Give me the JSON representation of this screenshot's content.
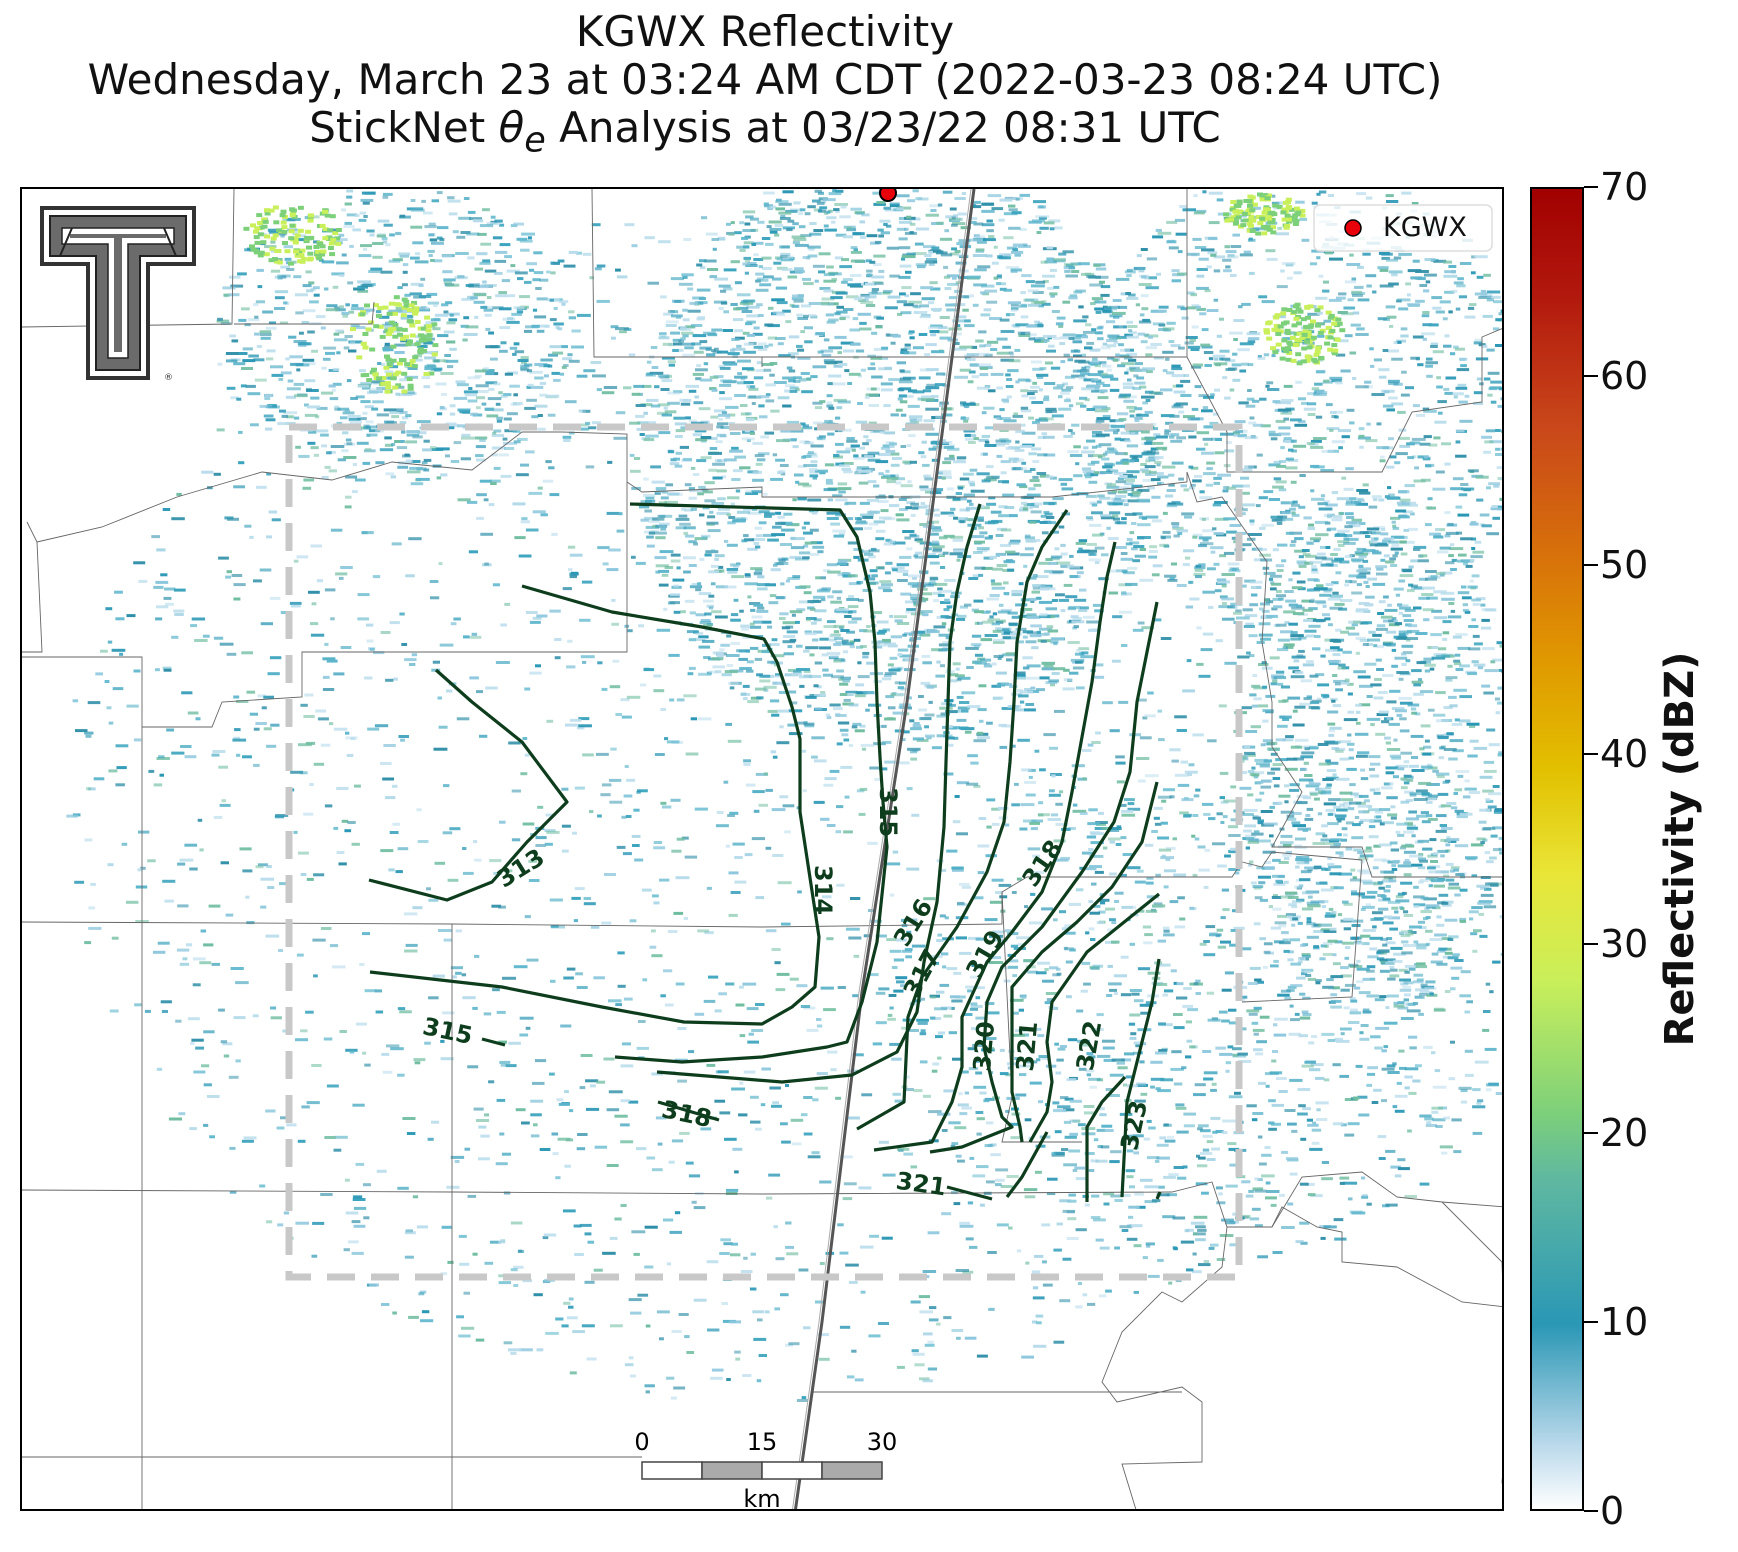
{
  "title": {
    "line1": "KGWX Reflectivity",
    "line2": "Wednesday, March 23 at 03:24 AM CDT (2022-03-23 08:24 UTC)",
    "line3_pre": "StickNet ",
    "line3_symbol": "θ",
    "line3_subscript": "e",
    "line3_post": " Analysis at 03/23/22 08:31 UTC"
  },
  "legend": {
    "label": "KGWX",
    "marker_color": "#e8000b"
  },
  "colorbar": {
    "label": "Reflectivity (dBZ)",
    "ticks": [
      "0",
      "10",
      "20",
      "30",
      "40",
      "50",
      "60",
      "70"
    ],
    "min": 0,
    "max": 70
  },
  "scalebar": {
    "ticks": [
      "0",
      "15",
      "30"
    ],
    "unit": "km"
  },
  "contour_color": "#0d3d1c",
  "contours": [
    {
      "label": "313"
    },
    {
      "label": "314"
    },
    {
      "label": "315"
    },
    {
      "label": "315"
    },
    {
      "label": "316"
    },
    {
      "label": "317"
    },
    {
      "label": "318"
    },
    {
      "label": "318"
    },
    {
      "label": "319"
    },
    {
      "label": "320"
    },
    {
      "label": "321"
    },
    {
      "label": "321"
    },
    {
      "label": "322"
    },
    {
      "label": "323"
    }
  ],
  "analysis_box_color": "#c8c8c8",
  "logo": "texas-tech-double-t-logo"
}
